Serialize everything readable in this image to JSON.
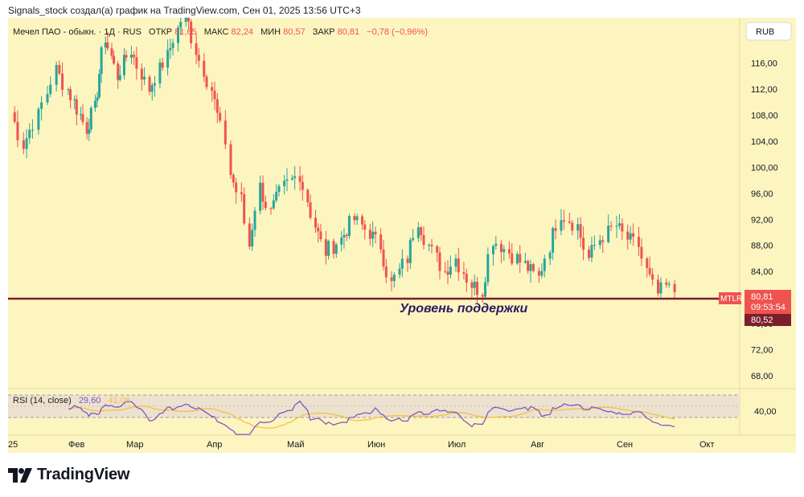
{
  "header": {
    "text": "Signals_stock создал(а) график на TradingView.com, Сен 01, 2025 13:56 UTC+3"
  },
  "legend": {
    "symbol": "Мечел ПАО - обыкн. · 1Д · RUS",
    "open_label": "ОТКР",
    "open": "81,65",
    "high_label": "МАКС",
    "high": "82,24",
    "low_label": "МИН",
    "low": "80,57",
    "close_label": "ЗАКР",
    "close": "80,81",
    "change": "−0,78 (−0,96%)"
  },
  "currency": "RUB",
  "price_axis": {
    "ticks": [
      "116,00",
      "112,00",
      "108,00",
      "104,00",
      "100,00",
      "96,00",
      "92,00",
      "88,00",
      "84,00",
      "76,00",
      "72,00",
      "68,00"
    ]
  },
  "price_tags": {
    "ticker": "MTLR",
    "last_price": "80,81",
    "countdown": "09:53:54",
    "support_price": "80,52"
  },
  "annotation": "Уровень поддержки",
  "time_axis": {
    "labels": [
      "25",
      "Фев",
      "Мар",
      "Апр",
      "Май",
      "Июн",
      "Июл",
      "Авг",
      "Сен",
      "Окт"
    ]
  },
  "rsi": {
    "label": "RSI (14, close)",
    "value": "29,60",
    "ma_value": "41,06",
    "tick": "40,00"
  },
  "logo_text": "TradingView",
  "colors": {
    "background": "#fdf5c0",
    "up": "#26a69a",
    "down": "#ef5350",
    "support": "#7b1f2b",
    "rsi_line": "#7e57c2",
    "rsi_ma": "#f5c142",
    "rsi_band": "#ede2cf",
    "annotation": "#2a1b63"
  },
  "chart_data": {
    "type": "candlestick",
    "title": "Мечел ПАО - обыкн. · 1Д · RUS",
    "ylabel": "",
    "ylim": [
      66,
      123
    ],
    "support_level": 80.52,
    "x_ticks": [
      "Фев",
      "Мар",
      "Апр",
      "Май",
      "Июн",
      "Июл",
      "Авг",
      "Сен",
      "Окт"
    ],
    "price_waypoints": [
      {
        "date": "2025-01-13",
        "close": 108.5
      },
      {
        "date": "2025-01-17",
        "close": 103.5
      },
      {
        "date": "2025-01-22",
        "close": 108
      },
      {
        "date": "2025-01-28",
        "close": 115
      },
      {
        "date": "2025-02-04",
        "close": 110
      },
      {
        "date": "2025-02-10",
        "close": 106
      },
      {
        "date": "2025-02-14",
        "close": 109
      },
      {
        "date": "2025-02-19",
        "close": 120
      },
      {
        "date": "2025-02-25",
        "close": 114
      },
      {
        "date": "2025-03-03",
        "close": 118
      },
      {
        "date": "2025-03-10",
        "close": 112
      },
      {
        "date": "2025-03-17",
        "close": 117
      },
      {
        "date": "2025-03-24",
        "close": 124
      },
      {
        "date": "2025-03-28",
        "close": 118
      },
      {
        "date": "2025-04-03",
        "close": 112
      },
      {
        "date": "2025-04-08",
        "close": 104
      },
      {
        "date": "2025-04-10",
        "close": 99
      },
      {
        "date": "2025-04-14",
        "close": 95
      },
      {
        "date": "2025-04-17",
        "close": 88
      },
      {
        "date": "2025-04-21",
        "close": 97
      },
      {
        "date": "2025-04-25",
        "close": 93
      },
      {
        "date": "2025-04-30",
        "close": 97
      },
      {
        "date": "2025-05-06",
        "close": 99
      },
      {
        "date": "2025-05-12",
        "close": 91
      },
      {
        "date": "2025-05-16",
        "close": 87
      },
      {
        "date": "2025-05-22",
        "close": 89
      },
      {
        "date": "2025-05-27",
        "close": 92
      },
      {
        "date": "2025-06-02",
        "close": 90
      },
      {
        "date": "2025-06-06",
        "close": 88
      },
      {
        "date": "2025-06-10",
        "close": 82
      },
      {
        "date": "2025-06-16",
        "close": 86
      },
      {
        "date": "2025-06-20",
        "close": 92
      },
      {
        "date": "2025-06-24",
        "close": 88
      },
      {
        "date": "2025-06-30",
        "close": 84
      },
      {
        "date": "2025-07-04",
        "close": 86
      },
      {
        "date": "2025-07-10",
        "close": 82
      },
      {
        "date": "2025-07-14",
        "close": 81
      },
      {
        "date": "2025-07-18",
        "close": 89
      },
      {
        "date": "2025-07-24",
        "close": 87
      },
      {
        "date": "2025-07-30",
        "close": 85
      },
      {
        "date": "2025-08-04",
        "close": 83
      },
      {
        "date": "2025-08-08",
        "close": 88
      },
      {
        "date": "2025-08-12",
        "close": 93
      },
      {
        "date": "2025-08-18",
        "close": 91
      },
      {
        "date": "2025-08-22",
        "close": 86
      },
      {
        "date": "2025-08-26",
        "close": 89
      },
      {
        "date": "2025-09-01",
        "close": 91
      },
      {
        "date": "2025-09-05",
        "close": 89
      },
      {
        "date": "2025-09-09",
        "close": 88
      },
      {
        "date": "2025-09-12",
        "close": 84
      },
      {
        "date": "2025-09-16",
        "close": 80.5
      },
      {
        "date": "2025-09-19",
        "close": 81.6
      },
      {
        "date": "2025-09-22",
        "close": 80.81
      }
    ],
    "rsi_last": 29.6,
    "rsi_ma_last": 41.06
  }
}
